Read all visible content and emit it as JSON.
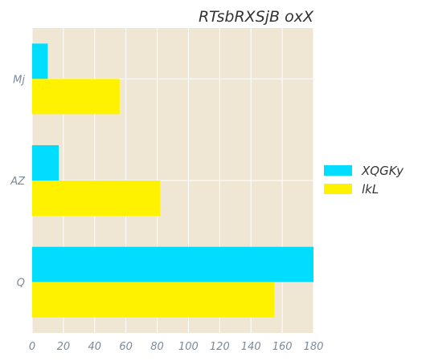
{
  "chart_data": {
    "type": "bar",
    "orientation": "horizontal",
    "title": "RTsbRXSjB oxX",
    "xlabel": "",
    "ylabel": "",
    "categories": [
      "Q",
      "AZ",
      "Mj"
    ],
    "series": [
      {
        "name": "XQGKy",
        "values": [
          180,
          17,
          10
        ],
        "color": "#00ddff"
      },
      {
        "name": "lkL",
        "values": [
          155,
          82,
          56
        ],
        "color": "#fff200"
      }
    ],
    "xlim": [
      0,
      180
    ],
    "xticks": [
      "0",
      "20",
      "40",
      "60",
      "80",
      "100",
      "120",
      "140",
      "160",
      "180"
    ],
    "grid": true,
    "legend_position": "right",
    "background_color": "#efe6d4"
  }
}
